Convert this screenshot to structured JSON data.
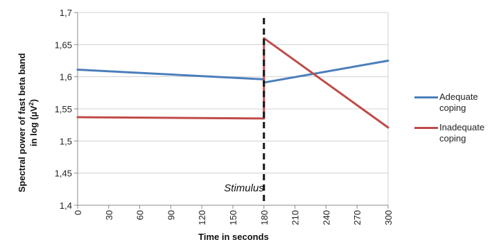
{
  "chart_data": {
    "type": "line",
    "title": "",
    "xlabel": "Time in seconds",
    "ylabel_line1": "Spectral power of fast beta band",
    "ylabel_line2_prefix": "in log (µV",
    "ylabel_line2_sup": "2",
    "ylabel_line2_suffix": ")",
    "xlim": [
      0,
      300
    ],
    "ylim": [
      1.4,
      1.7
    ],
    "x_ticks": [
      0,
      30,
      60,
      90,
      120,
      150,
      180,
      210,
      240,
      270,
      300
    ],
    "x_tick_labels": [
      "0",
      "30",
      "60",
      "90",
      "120",
      "150",
      "180",
      "210",
      "240",
      "270",
      "300"
    ],
    "y_ticks": [
      1.4,
      1.45,
      1.5,
      1.55,
      1.6,
      1.65,
      1.7
    ],
    "y_tick_labels": [
      "1,4",
      "1,45",
      "1,5",
      "1,55",
      "1,6",
      "1,65",
      "1,7"
    ],
    "grid": "horizontal",
    "legend_position": "right",
    "annotation": {
      "text": "Stimulus",
      "x": 180,
      "style": "dashed vertical line"
    },
    "series": [
      {
        "name": "Adequate coping",
        "legend_lines": [
          "Adequate",
          "coping"
        ],
        "color": "#4a7ebb",
        "x": [
          0,
          180,
          180,
          300
        ],
        "y": [
          1.611,
          1.596,
          1.591,
          1.625
        ]
      },
      {
        "name": "Inadequate coping",
        "legend_lines": [
          "Inadequate",
          "coping"
        ],
        "color": "#be4b48",
        "x": [
          0,
          180,
          180,
          300
        ],
        "y": [
          1.537,
          1.535,
          1.66,
          1.521
        ]
      }
    ]
  }
}
